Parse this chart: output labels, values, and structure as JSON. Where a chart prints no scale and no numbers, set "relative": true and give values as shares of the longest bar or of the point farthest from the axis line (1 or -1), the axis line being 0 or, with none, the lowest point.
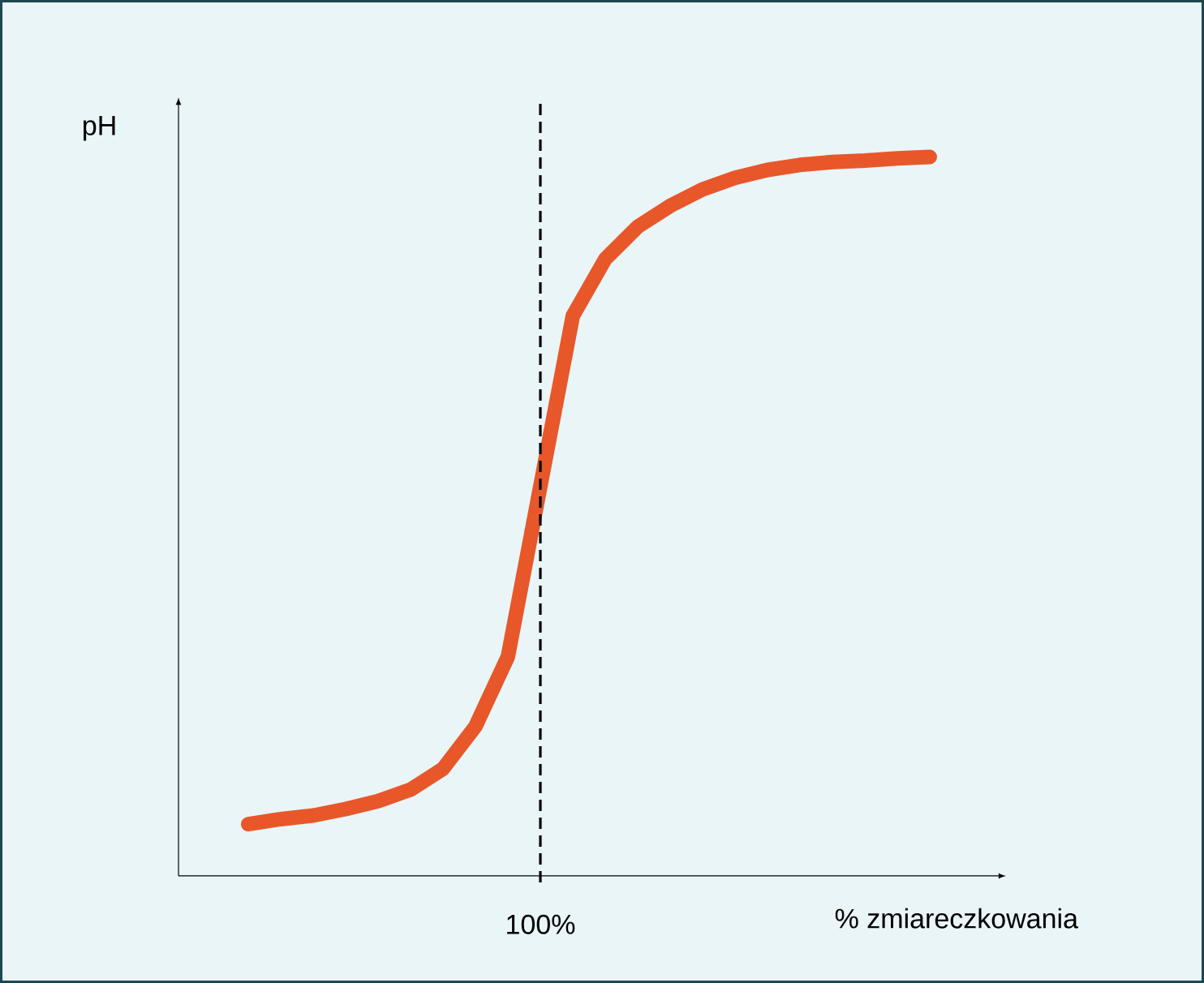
{
  "chart_data": {
    "type": "line",
    "relative": true,
    "xlabel": "% zmiareczkowania",
    "ylabel": "pH",
    "categories": [
      null,
      null,
      null,
      null,
      null,
      null,
      null,
      null,
      null,
      null,
      null,
      null,
      null,
      null,
      null,
      null,
      null,
      null,
      null,
      null,
      null,
      null
    ],
    "series": [
      {
        "color": "#e8572a",
        "values": [
          0.072,
          0.079,
          0.084,
          0.093,
          0.104,
          0.12,
          0.149,
          0.208,
          0.305,
          0.542,
          0.779,
          0.858,
          0.903,
          0.932,
          0.955,
          0.971,
          0.982,
          0.989,
          0.993,
          0.995,
          0.998,
          1.0
        ]
      }
    ],
    "annotations": [
      "100%"
    ]
  }
}
